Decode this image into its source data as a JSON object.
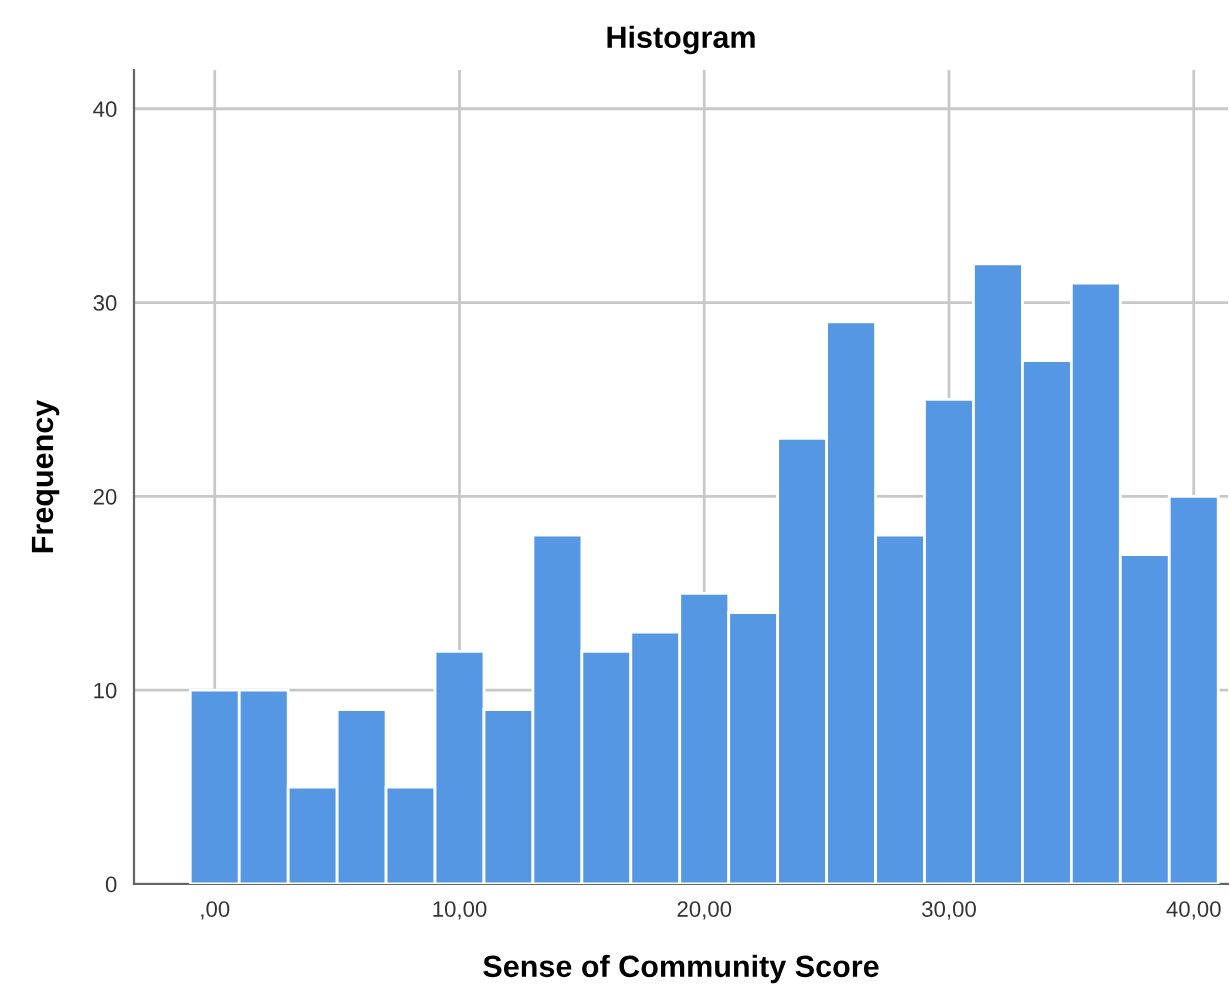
{
  "chart_data": {
    "type": "histogram",
    "title": "Histogram",
    "xlabel": "Sense of Community Score",
    "ylabel": "Frequency",
    "bins": [
      -1,
      1,
      3,
      5,
      7,
      9,
      11,
      13,
      15,
      17,
      19,
      21,
      23,
      25,
      27,
      29,
      31,
      33,
      35,
      37,
      39,
      41
    ],
    "values": [
      10,
      10,
      5,
      9,
      5,
      12,
      9,
      18,
      12,
      13,
      15,
      14,
      23,
      29,
      18,
      25,
      32,
      27,
      31,
      17,
      20
    ],
    "color": "#5597e2",
    "xlim": [
      -3.3,
      41.4
    ],
    "ylim": [
      0,
      42
    ],
    "xticks": [
      {
        "value": 0,
        "label": ",00"
      },
      {
        "value": 10,
        "label": "10,00"
      },
      {
        "value": 20,
        "label": "20,00"
      },
      {
        "value": 30,
        "label": "30,00"
      },
      {
        "value": 40,
        "label": "40,00"
      }
    ],
    "yticks": [
      0,
      10,
      20,
      30,
      40
    ],
    "grid": true,
    "legend": false
  }
}
